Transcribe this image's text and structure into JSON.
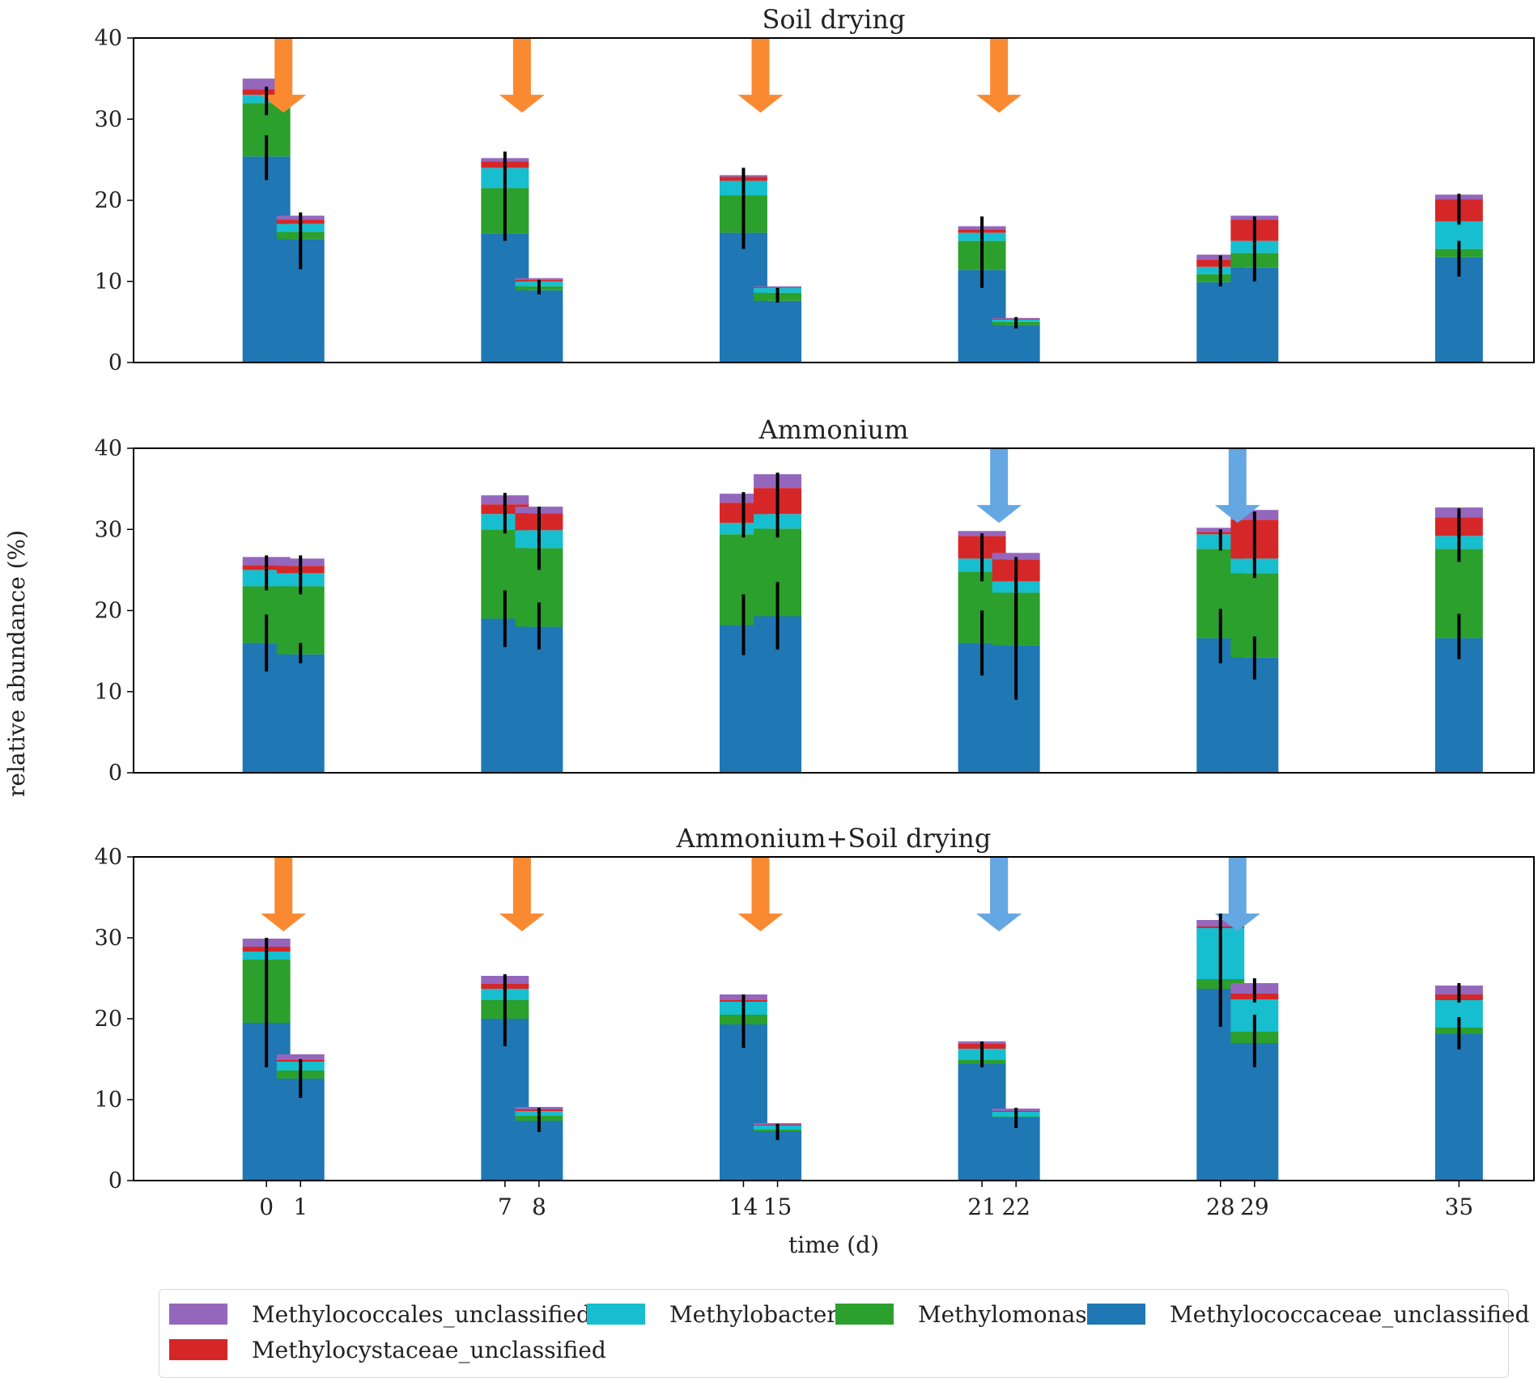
{
  "chart_data": {
    "type": "bar",
    "stacked": true,
    "ylabel": "relative abundance (%)",
    "xlabel": "time (d)",
    "ylim": [
      0,
      40
    ],
    "yticks": [
      0,
      10,
      20,
      30,
      40
    ],
    "categories": [
      "0",
      "1",
      "7",
      "8",
      "14",
      "15",
      "21",
      "22",
      "28",
      "29",
      "35"
    ],
    "x": [
      0,
      1,
      7,
      8,
      14,
      15,
      21,
      22,
      28,
      29,
      35
    ],
    "series": [
      {
        "name": "Methylococcaceae_unclassified",
        "color": "#1f77b4"
      },
      {
        "name": "Methylomonas",
        "color": "#2ca02c"
      },
      {
        "name": "Methylobacter",
        "color": "#17becf"
      },
      {
        "name": "Methylocystaceae_unclassified",
        "color": "#d62728"
      },
      {
        "name": "Methylococcales_unclassified",
        "color": "#9467bd"
      }
    ],
    "panels": [
      {
        "title": "Soil drying",
        "values": {
          "Methylococcaceae_unclassified": [
            25.4,
            15.2,
            15.9,
            8.9,
            16.0,
            7.6,
            11.4,
            4.6,
            9.9,
            11.7,
            13.0
          ],
          "Methylomonas": [
            6.6,
            0.9,
            5.6,
            0.5,
            4.6,
            1.0,
            3.6,
            0.4,
            1.0,
            1.8,
            1.0
          ],
          "Methylobacter": [
            1.0,
            1.0,
            2.5,
            0.6,
            1.8,
            0.6,
            1.0,
            0.3,
            0.9,
            1.5,
            3.4
          ],
          "Methylocystaceae_unclassified": [
            0.7,
            0.5,
            0.8,
            0.2,
            0.5,
            0.1,
            0.4,
            0.1,
            0.9,
            2.6,
            2.7
          ],
          "Methylococcales_unclassified": [
            1.3,
            0.5,
            0.4,
            0.2,
            0.2,
            0.1,
            0.4,
            0.1,
            0.6,
            0.5,
            0.6
          ]
        },
        "errors": [
          {
            "bottom": 25.4,
            "low": 22.5,
            "high": 28.0
          },
          {
            "bottom": 32.0,
            "low": 30.5,
            "high": 34.0
          },
          {
            "bottom": 15.2,
            "low": 11.5,
            "high": 18.5
          },
          {
            "bottom": 15.9,
            "low": 15.0,
            "high": 26.0
          },
          {
            "bottom": 8.9,
            "low": 8.4,
            "high": 10.2
          },
          {
            "bottom": 16.0,
            "low": 14.0,
            "high": 24.0
          },
          {
            "bottom": 7.6,
            "low": 7.4,
            "high": 9.2
          },
          {
            "bottom": 11.4,
            "low": 9.2,
            "high": 18.0
          },
          {
            "bottom": 4.6,
            "low": 4.2,
            "high": 5.6
          },
          {
            "bottom": 9.9,
            "low": 9.4,
            "high": 13.2
          },
          {
            "bottom": 11.7,
            "low": 10.0,
            "high": 15.0
          },
          {
            "bottom": 15.0,
            "low": 15.0,
            "high": 18.0
          },
          {
            "bottom": 13.0,
            "low": 10.6,
            "high": 15.0
          },
          {
            "bottom": 17.4,
            "low": 17.0,
            "high": 20.8
          }
        ],
        "arrows": [
          {
            "x": 0.5,
            "treatment": "Soil drying"
          },
          {
            "x": 7.5,
            "treatment": "Soil drying"
          },
          {
            "x": 14.5,
            "treatment": "Soil drying"
          },
          {
            "x": 21.5,
            "treatment": "Soil drying"
          }
        ]
      },
      {
        "title": "Ammonium",
        "values": {
          "Methylococcaceae_unclassified": [
            16.0,
            14.6,
            19.0,
            18.0,
            18.2,
            19.3,
            16.0,
            15.7,
            16.6,
            14.2,
            16.6
          ],
          "Methylomonas": [
            7.0,
            8.4,
            11.0,
            9.7,
            11.2,
            10.8,
            8.8,
            6.5,
            11.0,
            10.4,
            11.0
          ],
          "Methylobacter": [
            2.0,
            1.6,
            1.9,
            2.2,
            1.4,
            1.8,
            1.6,
            1.4,
            1.8,
            1.8,
            1.6
          ],
          "Methylocystaceae_unclassified": [
            0.6,
            0.9,
            1.2,
            2.1,
            2.5,
            3.2,
            2.8,
            2.7,
            0.3,
            4.8,
            2.3
          ],
          "Methylococcales_unclassified": [
            1.0,
            0.9,
            1.1,
            0.8,
            1.1,
            1.7,
            0.6,
            0.8,
            0.5,
            1.2,
            1.2
          ]
        },
        "errors": [
          {
            "bottom": 16.0,
            "low": 12.5,
            "high": 19.5
          },
          {
            "bottom": 23.0,
            "low": 22.5,
            "high": 26.8
          },
          {
            "bottom": 14.6,
            "low": 13.5,
            "high": 16.0
          },
          {
            "bottom": 23.0,
            "low": 22.0,
            "high": 26.8
          },
          {
            "bottom": 19.0,
            "low": 15.5,
            "high": 22.5
          },
          {
            "bottom": 30.0,
            "low": 29.5,
            "high": 34.5
          },
          {
            "bottom": 18.0,
            "low": 15.2,
            "high": 21.0
          },
          {
            "bottom": 27.7,
            "low": 25.0,
            "high": 32.8
          },
          {
            "bottom": 18.2,
            "low": 14.5,
            "high": 22.0
          },
          {
            "bottom": 29.4,
            "low": 29.0,
            "high": 34.6
          },
          {
            "bottom": 19.3,
            "low": 15.2,
            "high": 23.5
          },
          {
            "bottom": 30.1,
            "low": 29.0,
            "high": 37.0
          },
          {
            "bottom": 16.0,
            "low": 12.0,
            "high": 20.0
          },
          {
            "bottom": 24.8,
            "low": 23.6,
            "high": 29.5
          },
          {
            "bottom": 15.7,
            "low": 9.0,
            "high": 23.0
          },
          {
            "bottom": 15.7,
            "low": 15.5,
            "high": 26.6
          },
          {
            "bottom": 16.6,
            "low": 13.5,
            "high": 20.2
          },
          {
            "bottom": 27.6,
            "low": 27.4,
            "high": 30.0
          },
          {
            "bottom": 14.2,
            "low": 11.5,
            "high": 16.8
          },
          {
            "bottom": 24.6,
            "low": 24.0,
            "high": 32.2
          },
          {
            "bottom": 16.6,
            "low": 14.0,
            "high": 19.6
          },
          {
            "bottom": 27.6,
            "low": 26.0,
            "high": 32.6
          }
        ],
        "arrows": [
          {
            "x": 21.5,
            "treatment": "Ammonium"
          },
          {
            "x": 28.5,
            "treatment": "Ammonium"
          }
        ]
      },
      {
        "title": "Ammonium+Soil drying",
        "values": {
          "Methylococcaceae_unclassified": [
            19.5,
            12.6,
            20.0,
            7.4,
            19.3,
            6.1,
            14.4,
            7.8,
            23.7,
            17.0,
            18.1
          ],
          "Methylomonas": [
            7.8,
            1.0,
            2.3,
            0.6,
            1.2,
            0.2,
            0.5,
            0.1,
            1.2,
            1.4,
            0.8
          ],
          "Methylobacter": [
            1.0,
            1.1,
            1.4,
            0.6,
            1.6,
            0.5,
            1.4,
            0.6,
            6.3,
            4.0,
            3.4
          ],
          "Methylocystaceae_unclassified": [
            0.6,
            0.2,
            0.6,
            0.2,
            0.2,
            0.1,
            0.6,
            0.1,
            0.2,
            0.7,
            0.7
          ],
          "Methylococcales_unclassified": [
            1.0,
            0.7,
            1.0,
            0.3,
            0.7,
            0.2,
            0.3,
            0.3,
            0.8,
            1.3,
            1.1
          ]
        },
        "errors": [
          {
            "bottom": 19.5,
            "low": 14.0,
            "high": 26.0
          },
          {
            "bottom": 27.3,
            "low": 26.0,
            "high": 30.0
          },
          {
            "bottom": 12.6,
            "low": 10.2,
            "high": 15.0
          },
          {
            "bottom": 20.0,
            "low": 16.6,
            "high": 25.5
          },
          {
            "bottom": 7.4,
            "low": 6.0,
            "high": 9.0
          },
          {
            "bottom": 19.3,
            "low": 16.4,
            "high": 23.0
          },
          {
            "bottom": 6.1,
            "low": 5.0,
            "high": 7.0
          },
          {
            "bottom": 14.4,
            "low": 14.0,
            "high": 17.2
          },
          {
            "bottom": 7.8,
            "low": 6.5,
            "high": 9.0
          },
          {
            "bottom": 23.7,
            "low": 19.0,
            "high": 33.0
          },
          {
            "bottom": 17.0,
            "low": 14.0,
            "high": 20.5
          },
          {
            "bottom": 22.4,
            "low": 22.0,
            "high": 25.0
          },
          {
            "bottom": 18.1,
            "low": 16.2,
            "high": 20.2
          },
          {
            "bottom": 22.4,
            "low": 22.0,
            "high": 24.4
          }
        ],
        "arrows": [
          {
            "x": 0.5,
            "treatment": "Soil drying"
          },
          {
            "x": 7.5,
            "treatment": "Soil drying"
          },
          {
            "x": 14.5,
            "treatment": "Soil drying"
          },
          {
            "x": 21.5,
            "treatment": "Soil drying"
          },
          {
            "x": 21.5,
            "treatment": "Ammonium"
          },
          {
            "x": 28.5,
            "treatment": "Ammonium"
          }
        ]
      }
    ],
    "arrow_colors": {
      "Soil drying": "#f98a32",
      "Ammonium": "#64a7e3"
    },
    "legend": {
      "position": "bottom",
      "items": [
        {
          "label": "Methylococcales_unclassified",
          "color": "#9467bd"
        },
        {
          "label": "Methylobacter",
          "color": "#17becf"
        },
        {
          "label": "Methylomonas",
          "color": "#2ca02c"
        },
        {
          "label": "Methylococcaceae_unclassified",
          "color": "#1f77b4"
        },
        {
          "label": "Methylocystaceae_unclassified",
          "color": "#d62728"
        }
      ]
    }
  }
}
